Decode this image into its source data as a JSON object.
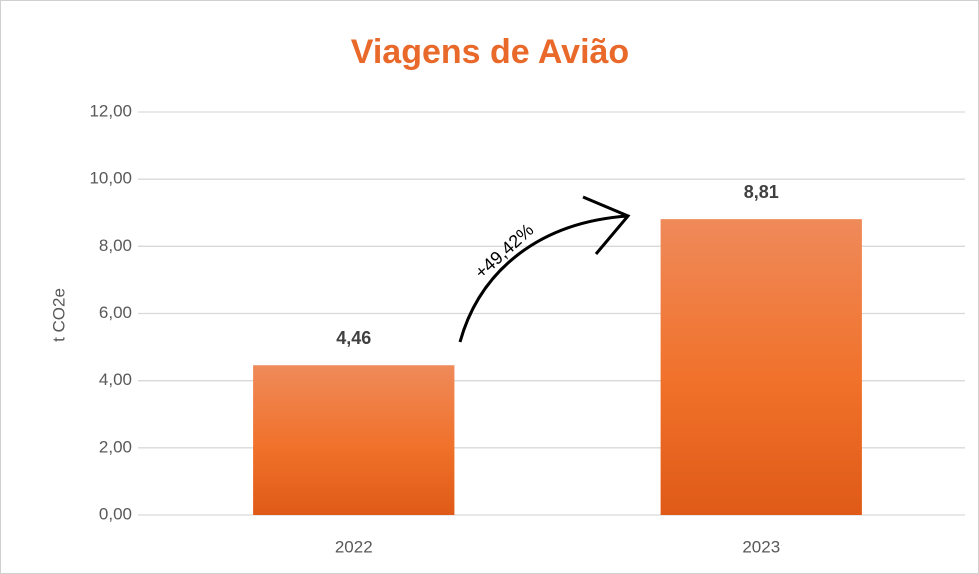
{
  "chart_data": {
    "type": "bar",
    "title": "Viagens de Avião",
    "y_axis_label": "t CO2e",
    "categories": [
      "2022",
      "2023"
    ],
    "values": [
      4.46,
      8.81
    ],
    "value_labels": [
      "4,46",
      "8,81"
    ],
    "color": "#ED7230",
    "annotation": "+49,42%",
    "ylim": [
      0,
      12
    ],
    "yticks": [
      {
        "value": 0,
        "label": "0,00"
      },
      {
        "value": 2,
        "label": "2,00"
      },
      {
        "value": 4,
        "label": "4,00"
      },
      {
        "value": 6,
        "label": "6,00"
      },
      {
        "value": 8,
        "label": "8,00"
      },
      {
        "value": 10,
        "label": "10,00"
      },
      {
        "value": 12,
        "label": "12,00"
      }
    ],
    "grid": true
  }
}
